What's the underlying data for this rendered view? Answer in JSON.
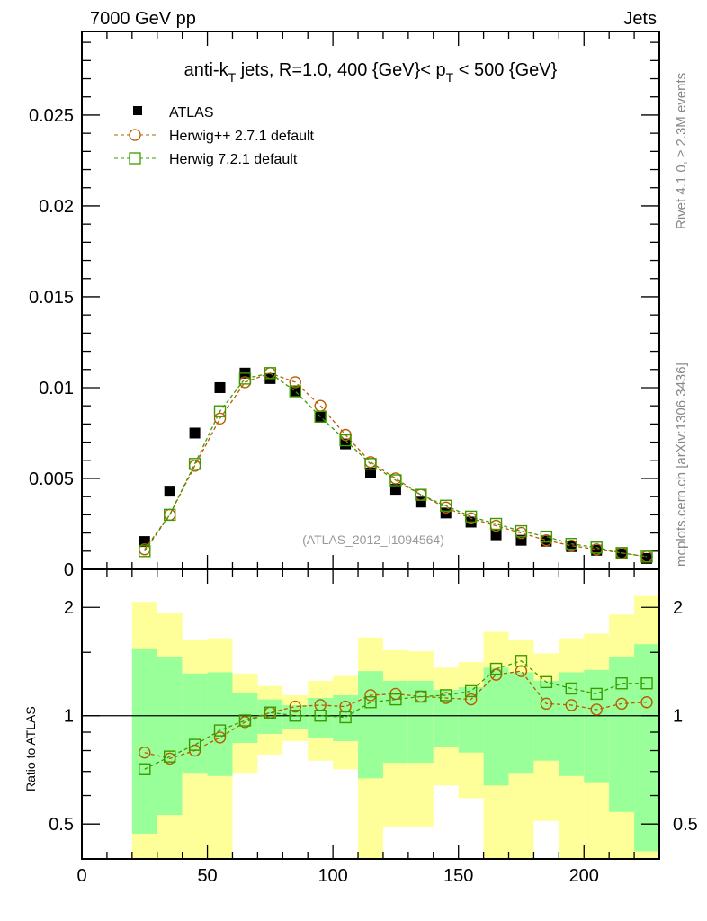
{
  "header": {
    "left": "7000 GeV pp",
    "right": "Jets"
  },
  "side_labels": {
    "rivet": "Rivet 4.1.0, ≥ 2.3M events",
    "mcplots": "mcplots.cern.ch [arXiv:1306.3436]"
  },
  "colors": {
    "atlas": "#000000",
    "herwigpp": "#b85c00",
    "herwig7": "#3c9a00",
    "band1": "#99ff99",
    "band2": "#ffff99"
  },
  "chart_data": [
    {
      "type": "scatter",
      "title_parts": {
        "pre": "anti-k",
        "sub1": "T",
        "mid": " jets, R=1.0, 400 {GeV}< p",
        "sub2": "T",
        "post": " < 500 {GeV}"
      },
      "watermark": "(ATLAS_2012_I1094564)",
      "xlim": [
        0,
        230
      ],
      "ylim": [
        0,
        0.0296
      ],
      "yticks": [
        0,
        0.005,
        0.01,
        0.015,
        0.02,
        0.025
      ],
      "ytick_labels": [
        "0",
        "0.005",
        "0.01",
        "0.015",
        "0.02",
        "0.025"
      ],
      "legend_position": "top-left",
      "x": [
        25,
        35,
        45,
        55,
        65,
        75,
        85,
        95,
        105,
        115,
        125,
        135,
        145,
        155,
        165,
        175,
        185,
        195,
        205,
        215,
        225
      ],
      "series": [
        {
          "name": "ATLAS",
          "marker": "filled-square",
          "values": [
            0.00153,
            0.0043,
            0.0075,
            0.01,
            0.0108,
            0.0105,
            0.0098,
            0.0084,
            0.0069,
            0.0053,
            0.0044,
            0.0037,
            0.0031,
            0.0026,
            0.0019,
            0.0016,
            0.00155,
            0.00125,
            0.00105,
            0.00085,
            0.0006
          ]
        },
        {
          "name": "Herwig++ 2.7.1 default",
          "marker": "open-circle",
          "values": [
            0.0011,
            0.003,
            0.0057,
            0.0083,
            0.0103,
            0.0108,
            0.0103,
            0.009,
            0.0074,
            0.0059,
            0.005,
            0.0041,
            0.0034,
            0.0028,
            0.0024,
            0.002,
            0.0016,
            0.0013,
            0.0011,
            0.0009,
            0.0007
          ]
        },
        {
          "name": "Herwig 7.2.1 default",
          "marker": "open-square",
          "values": [
            0.001,
            0.003,
            0.0058,
            0.0087,
            0.0105,
            0.0108,
            0.0098,
            0.0084,
            0.0071,
            0.0058,
            0.0049,
            0.0041,
            0.0035,
            0.0029,
            0.0025,
            0.0021,
            0.0018,
            0.0014,
            0.0012,
            0.0009,
            0.0007
          ]
        }
      ]
    },
    {
      "type": "line",
      "ylabel": "Ratio to ATLAS",
      "yscale": "log",
      "xlim": [
        0,
        230
      ],
      "ylim": [
        0.4,
        2.55
      ],
      "yticks": [
        0.5,
        1,
        2
      ],
      "ytick_labels": [
        "0.5",
        "1",
        "2"
      ],
      "xticks": [
        0,
        50,
        100,
        150,
        200
      ],
      "xtick_labels": [
        "0",
        "50",
        "100",
        "150",
        "200"
      ],
      "bin_edges": [
        20,
        30,
        40,
        50,
        60,
        70,
        80,
        90,
        100,
        110,
        120,
        130,
        140,
        150,
        160,
        170,
        180,
        190,
        200,
        210,
        220,
        230
      ],
      "band_1sigma": {
        "upper": [
          1.53,
          1.46,
          1.31,
          1.32,
          1.16,
          1.11,
          1.07,
          1.12,
          1.14,
          1.33,
          1.25,
          1.25,
          1.18,
          1.2,
          1.36,
          1.32,
          1.25,
          1.32,
          1.34,
          1.46,
          1.58
        ],
        "lower": [
          0.47,
          0.53,
          0.69,
          0.68,
          0.84,
          0.89,
          0.92,
          0.87,
          0.85,
          0.67,
          0.74,
          0.74,
          0.82,
          0.79,
          0.64,
          0.69,
          0.75,
          0.68,
          0.65,
          0.54,
          0.42
        ]
      },
      "band_2sigma": {
        "upper": [
          2.07,
          1.93,
          1.62,
          1.64,
          1.31,
          1.21,
          1.14,
          1.25,
          1.29,
          1.65,
          1.52,
          1.51,
          1.36,
          1.41,
          1.71,
          1.62,
          1.49,
          1.64,
          1.69,
          1.91,
          2.15
        ],
        "lower": [
          0.35,
          0.35,
          0.35,
          0.35,
          0.69,
          0.78,
          0.85,
          0.75,
          0.71,
          0.35,
          0.49,
          0.49,
          0.64,
          0.59,
          0.35,
          0.35,
          0.51,
          0.35,
          0.35,
          0.35,
          0.35
        ]
      },
      "x": [
        25,
        35,
        45,
        55,
        65,
        75,
        85,
        95,
        105,
        115,
        125,
        135,
        145,
        155,
        165,
        175,
        185,
        195,
        205,
        215,
        225
      ],
      "series": [
        {
          "name": "Herwig++ 2.7.1 default",
          "values": [
            0.79,
            0.76,
            0.8,
            0.87,
            0.96,
            1.02,
            1.06,
            1.07,
            1.06,
            1.14,
            1.15,
            1.13,
            1.12,
            1.11,
            1.3,
            1.33,
            1.08,
            1.07,
            1.04,
            1.08,
            1.09
          ]
        },
        {
          "name": "Herwig 7.2.1 default",
          "values": [
            0.71,
            0.77,
            0.83,
            0.91,
            0.97,
            1.02,
            1.0,
            1.0,
            0.99,
            1.09,
            1.11,
            1.13,
            1.14,
            1.17,
            1.35,
            1.42,
            1.24,
            1.19,
            1.15,
            1.23,
            1.23
          ]
        }
      ]
    }
  ]
}
